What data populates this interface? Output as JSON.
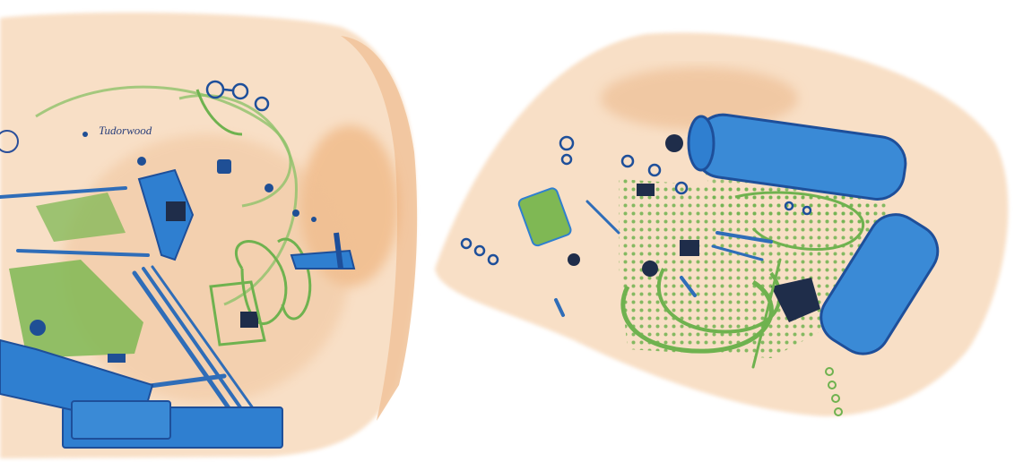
{
  "image": {
    "kind": "x-ray baggage scan",
    "background_color": "#ffffff",
    "palette": {
      "organic": "#f2c49a",
      "organic_dense": "#e8a569",
      "mixed": "#8fc26a",
      "metal": "#2f7fd0",
      "metal_dense": "#1e4f9a",
      "dark": "#1f2d4a"
    }
  },
  "left_bag": {
    "brand_label": "Tudorwood"
  },
  "right_bag": {}
}
